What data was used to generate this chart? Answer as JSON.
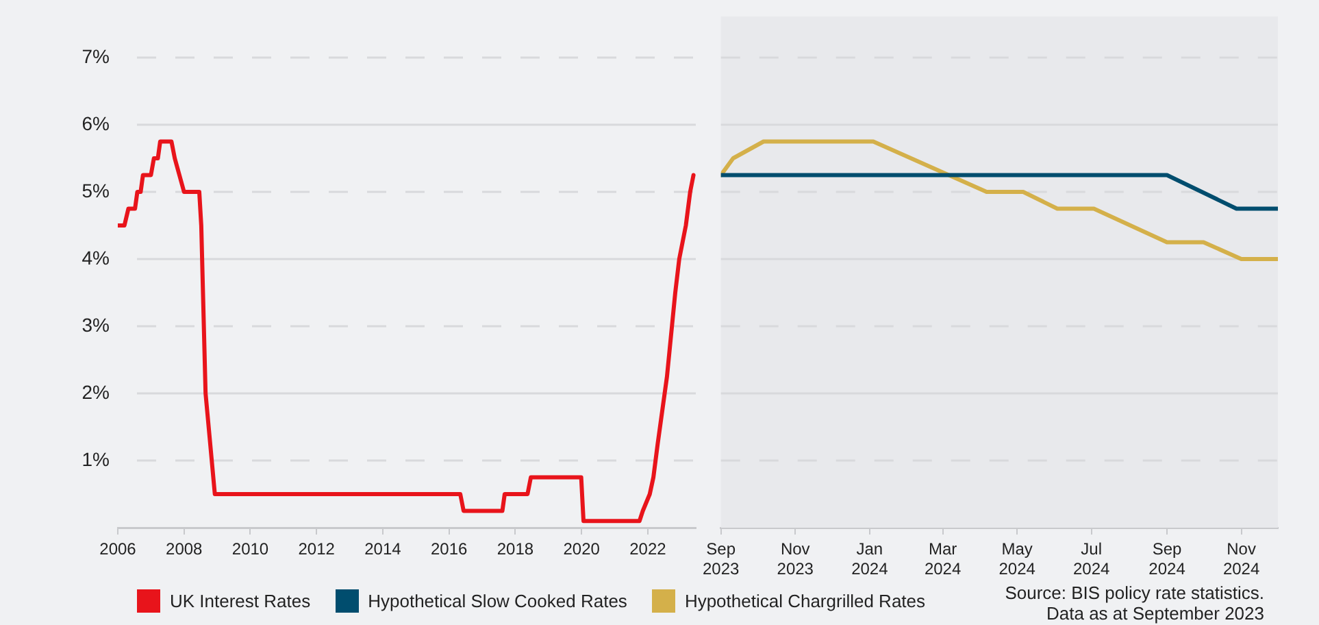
{
  "chart_data": [
    {
      "type": "line",
      "xlim": [
        2006,
        2023.45
      ],
      "xticks": [
        2006,
        2008,
        2010,
        2012,
        2014,
        2016,
        2018,
        2020,
        2022
      ],
      "ylim": [
        0,
        7
      ],
      "yticks": [
        {
          "value": 1,
          "label": "1%"
        },
        {
          "value": 2,
          "label": "2%"
        },
        {
          "value": 3,
          "label": "3%"
        },
        {
          "value": 4,
          "label": "4%"
        },
        {
          "value": 5,
          "label": "5%"
        },
        {
          "value": 6,
          "label": "6%"
        },
        {
          "value": 7,
          "label": "7%"
        }
      ],
      "grid": "y",
      "legend": "bottom",
      "marker": "none",
      "series": [
        {
          "name": "UK Interest Rates",
          "color": "#e8141b",
          "x": [
            2006,
            2006.2,
            2006.32,
            2006.52,
            2006.59,
            2006.69,
            2006.76,
            2007.0,
            2007.09,
            2007.21,
            2007.28,
            2007.62,
            2007.72,
            2007.86,
            2008.0,
            2008.46,
            2008.52,
            2008.65,
            2008.93,
            2016.34,
            2016.44,
            2017.61,
            2017.68,
            2018.37,
            2018.47,
            2019.99,
            2020.06,
            2021.75,
            2021.85,
            2022.06,
            2022.17,
            2022.3,
            2022.58,
            2022.83,
            2022.95,
            2023.05,
            2023.15,
            2023.28,
            2023.38
          ],
          "values": [
            4.5,
            4.5,
            4.75,
            4.75,
            5.0,
            5.0,
            5.25,
            5.25,
            5.5,
            5.5,
            5.75,
            5.75,
            5.5,
            5.25,
            5.0,
            5.0,
            4.5,
            2.0,
            0.5,
            0.5,
            0.25,
            0.25,
            0.5,
            0.5,
            0.75,
            0.75,
            0.1,
            0.1,
            0.25,
            0.5,
            0.75,
            1.25,
            2.25,
            3.5,
            4.0,
            4.25,
            4.5,
            5.0,
            5.25
          ]
        }
      ]
    },
    {
      "type": "line",
      "xlim": [
        "2023-09-01",
        "2024-12-01"
      ],
      "xticks": [
        {
          "value": "2023-09-01",
          "label": "Sep 2023"
        },
        {
          "value": "2023-11-01",
          "label": "Nov 2023"
        },
        {
          "value": "2024-01-01",
          "label": "Jan 2024"
        },
        {
          "value": "2024-03-01",
          "label": "Mar 2024"
        },
        {
          "value": "2024-05-01",
          "label": "May 2024"
        },
        {
          "value": "2024-07-01",
          "label": "Jul 2024"
        },
        {
          "value": "2024-09-01",
          "label": "Sep 2024"
        },
        {
          "value": "2024-11-01",
          "label": "Nov 2024"
        }
      ],
      "ylim": [
        0,
        7
      ],
      "yticks": [
        1,
        2,
        3,
        4,
        5,
        6,
        7
      ],
      "tick_labels": "x",
      "grid": "y",
      "legend": "bottom",
      "marker": "none",
      "bands": [
        {
          "axis": "x",
          "from": "2023-09-01",
          "to": "2024-12-01",
          "color": "#e8e9ec"
        }
      ],
      "series": [
        {
          "name": "Hypothetical Slow Cooked Rates",
          "color": "#004d6e",
          "x": [
            "2023-09-01",
            "2024-09-01",
            "2024-10-28",
            "2024-12-01"
          ],
          "values": [
            5.25,
            5.25,
            4.75,
            4.75
          ]
        },
        {
          "name": "Hypothetical Chargrilled Rates",
          "color": "#d4b04a",
          "x": [
            "2023-09-01",
            "2023-09-11",
            "2023-10-06",
            "2024-01-04",
            "2024-04-06",
            "2024-05-06",
            "2024-06-03",
            "2024-07-03",
            "2024-09-01",
            "2024-10-01",
            "2024-11-01",
            "2024-12-01"
          ],
          "values": [
            5.25,
            5.5,
            5.75,
            5.75,
            5.0,
            5.0,
            4.75,
            4.75,
            4.25,
            4.25,
            4.0,
            4.0
          ]
        }
      ],
      "annotations": [
        "Source: BIS policy rate statistics. Data as at September 2023"
      ]
    }
  ]
}
